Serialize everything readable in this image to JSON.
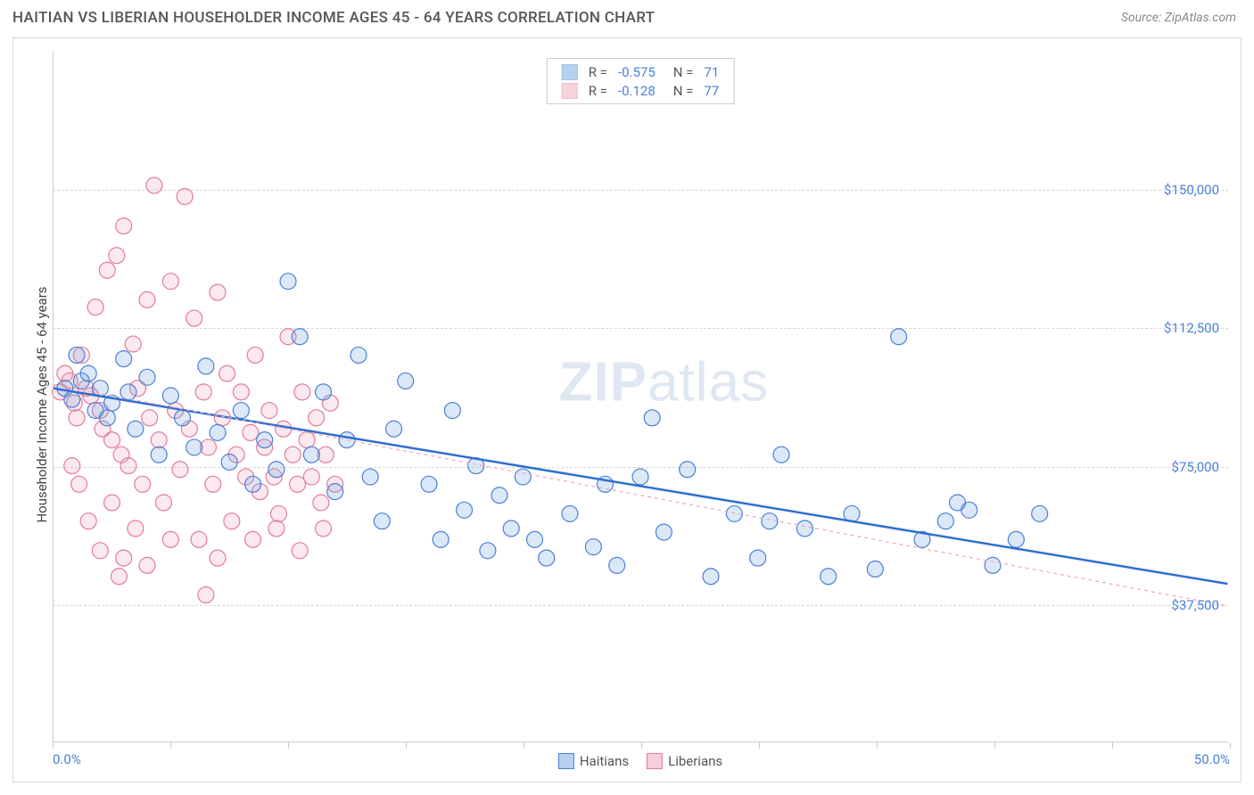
{
  "title": "HAITIAN VS LIBERIAN HOUSEHOLDER INCOME AGES 45 - 64 YEARS CORRELATION CHART",
  "source": "Source: ZipAtlas.com",
  "watermark_a": "ZIP",
  "watermark_b": "atlas",
  "chart": {
    "type": "scatter",
    "background_color": "#ffffff",
    "grid_color": "#d8d8d8",
    "axis_color": "#cccccc",
    "tick_label_color": "#4a7fd8",
    "ylabel": "Householder Income Ages 45 - 64 years",
    "ylabel_fontsize": 15,
    "xlim": [
      0.0,
      50.0
    ],
    "ylim": [
      0,
      187500
    ],
    "x_ticks_major": [
      0.0,
      50.0
    ],
    "x_ticks_minor": [
      5,
      10,
      15,
      20,
      25,
      30,
      35,
      40,
      45
    ],
    "x_tick_labels": [
      "0.0%",
      "50.0%"
    ],
    "y_ticks": [
      37500,
      75000,
      112500,
      150000
    ],
    "y_tick_labels": [
      "$37,500",
      "$75,000",
      "$112,500",
      "$150,000"
    ],
    "marker_radius": 9,
    "marker_stroke_width": 1.2,
    "marker_fill_opacity": 0.25,
    "series": [
      {
        "name": "Haitians",
        "color": "#6fa3e0",
        "stroke": "#4a7fd8",
        "regression": {
          "color": "#2f6fd0",
          "width": 2.5,
          "dash": "none",
          "x1": 0.0,
          "y1": 96000,
          "x2": 50.0,
          "y2": 43000
        },
        "stats": {
          "R": "-0.575",
          "N": "71"
        },
        "points": [
          [
            0.5,
            96000
          ],
          [
            0.8,
            93000
          ],
          [
            1.0,
            105000
          ],
          [
            1.2,
            98000
          ],
          [
            1.5,
            100000
          ],
          [
            1.8,
            90000
          ],
          [
            2.0,
            96000
          ],
          [
            2.3,
            88000
          ],
          [
            2.5,
            92000
          ],
          [
            3.0,
            104000
          ],
          [
            3.2,
            95000
          ],
          [
            3.5,
            85000
          ],
          [
            4.0,
            99000
          ],
          [
            4.5,
            78000
          ],
          [
            5.0,
            94000
          ],
          [
            5.5,
            88000
          ],
          [
            6.0,
            80000
          ],
          [
            6.5,
            102000
          ],
          [
            7.0,
            84000
          ],
          [
            7.5,
            76000
          ],
          [
            8.0,
            90000
          ],
          [
            8.5,
            70000
          ],
          [
            9.0,
            82000
          ],
          [
            9.5,
            74000
          ],
          [
            10.0,
            125000
          ],
          [
            10.5,
            110000
          ],
          [
            11.0,
            78000
          ],
          [
            11.5,
            95000
          ],
          [
            12.0,
            68000
          ],
          [
            12.5,
            82000
          ],
          [
            13.0,
            105000
          ],
          [
            13.5,
            72000
          ],
          [
            14.0,
            60000
          ],
          [
            14.5,
            85000
          ],
          [
            15.0,
            98000
          ],
          [
            16.0,
            70000
          ],
          [
            16.5,
            55000
          ],
          [
            17.0,
            90000
          ],
          [
            17.5,
            63000
          ],
          [
            18.0,
            75000
          ],
          [
            18.5,
            52000
          ],
          [
            19.0,
            67000
          ],
          [
            19.5,
            58000
          ],
          [
            20.0,
            72000
          ],
          [
            20.5,
            55000
          ],
          [
            21.0,
            50000
          ],
          [
            22.0,
            62000
          ],
          [
            23.0,
            53000
          ],
          [
            23.5,
            70000
          ],
          [
            24.0,
            48000
          ],
          [
            25.0,
            72000
          ],
          [
            25.5,
            88000
          ],
          [
            26.0,
            57000
          ],
          [
            27.0,
            74000
          ],
          [
            28.0,
            45000
          ],
          [
            29.0,
            62000
          ],
          [
            30.0,
            50000
          ],
          [
            31.0,
            78000
          ],
          [
            32.0,
            58000
          ],
          [
            33.0,
            45000
          ],
          [
            34.0,
            62000
          ],
          [
            35.0,
            47000
          ],
          [
            36.0,
            110000
          ],
          [
            37.0,
            55000
          ],
          [
            38.0,
            60000
          ],
          [
            39.0,
            63000
          ],
          [
            40.0,
            48000
          ],
          [
            41.0,
            55000
          ],
          [
            42.0,
            62000
          ],
          [
            38.5,
            65000
          ],
          [
            30.5,
            60000
          ]
        ]
      },
      {
        "name": "Liberians",
        "color": "#f0a8bb",
        "stroke": "#e37b98",
        "regression": {
          "color": "#f0a8bb",
          "width": 1.2,
          "dash": "4 4",
          "x1": 0.0,
          "y1": 97000,
          "x2": 50.0,
          "y2": 37000
        },
        "stats": {
          "R": "-0.128",
          "N": "77"
        },
        "points": [
          [
            0.3,
            95000
          ],
          [
            0.5,
            100000
          ],
          [
            0.7,
            98000
          ],
          [
            0.9,
            92000
          ],
          [
            1.0,
            88000
          ],
          [
            1.2,
            105000
          ],
          [
            1.4,
            96000
          ],
          [
            1.6,
            94000
          ],
          [
            1.8,
            118000
          ],
          [
            2.0,
            90000
          ],
          [
            2.1,
            85000
          ],
          [
            2.3,
            128000
          ],
          [
            2.5,
            82000
          ],
          [
            2.7,
            132000
          ],
          [
            2.9,
            78000
          ],
          [
            3.0,
            140000
          ],
          [
            3.2,
            75000
          ],
          [
            3.4,
            108000
          ],
          [
            3.6,
            96000
          ],
          [
            3.8,
            70000
          ],
          [
            4.0,
            120000
          ],
          [
            4.1,
            88000
          ],
          [
            4.3,
            151000
          ],
          [
            4.5,
            82000
          ],
          [
            4.7,
            65000
          ],
          [
            5.0,
            125000
          ],
          [
            5.2,
            90000
          ],
          [
            5.4,
            74000
          ],
          [
            5.6,
            148000
          ],
          [
            5.8,
            85000
          ],
          [
            6.0,
            115000
          ],
          [
            6.2,
            55000
          ],
          [
            6.4,
            95000
          ],
          [
            6.6,
            80000
          ],
          [
            6.8,
            70000
          ],
          [
            7.0,
            122000
          ],
          [
            7.2,
            88000
          ],
          [
            7.4,
            100000
          ],
          [
            7.6,
            60000
          ],
          [
            7.8,
            78000
          ],
          [
            8.0,
            95000
          ],
          [
            8.2,
            72000
          ],
          [
            8.4,
            84000
          ],
          [
            8.6,
            105000
          ],
          [
            8.8,
            68000
          ],
          [
            9.0,
            80000
          ],
          [
            9.2,
            90000
          ],
          [
            9.4,
            72000
          ],
          [
            9.6,
            62000
          ],
          [
            9.8,
            85000
          ],
          [
            10.0,
            110000
          ],
          [
            10.2,
            78000
          ],
          [
            10.4,
            70000
          ],
          [
            10.6,
            95000
          ],
          [
            10.8,
            82000
          ],
          [
            11.0,
            72000
          ],
          [
            11.2,
            88000
          ],
          [
            11.4,
            65000
          ],
          [
            11.6,
            78000
          ],
          [
            11.8,
            92000
          ],
          [
            12.0,
            70000
          ],
          [
            3.0,
            50000
          ],
          [
            4.0,
            48000
          ],
          [
            6.5,
            40000
          ],
          [
            2.0,
            52000
          ],
          [
            1.5,
            60000
          ],
          [
            0.8,
            75000
          ],
          [
            1.1,
            70000
          ],
          [
            2.5,
            65000
          ],
          [
            3.5,
            58000
          ],
          [
            5.0,
            55000
          ],
          [
            7.0,
            50000
          ],
          [
            8.5,
            55000
          ],
          [
            9.5,
            58000
          ],
          [
            10.5,
            52000
          ],
          [
            11.5,
            58000
          ],
          [
            2.8,
            45000
          ]
        ]
      }
    ]
  },
  "bottom_legend": [
    {
      "label": "Haitians",
      "fill": "#b8d0ef",
      "stroke": "#4a7fd8"
    },
    {
      "label": "Liberians",
      "fill": "#f7cfd9",
      "stroke": "#e37b98"
    }
  ],
  "stat_legend_labels": {
    "R": "R  =",
    "N": "N  ="
  }
}
